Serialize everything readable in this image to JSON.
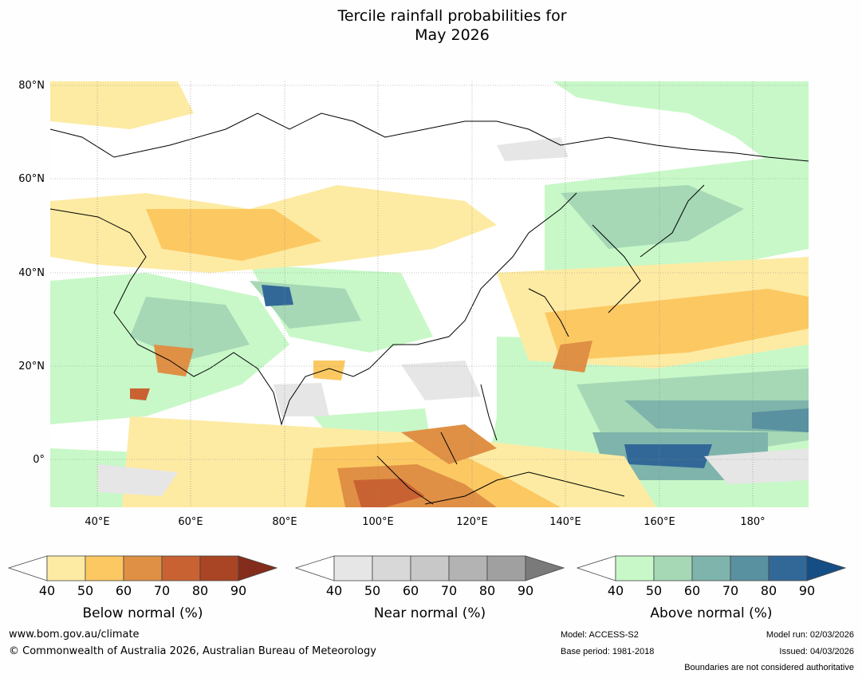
{
  "title_line1": "Tercile rainfall probabilities for",
  "title_line2": "May 2026",
  "lat_labels": [
    "80°N",
    "60°N",
    "40°N",
    "20°N",
    "0°"
  ],
  "lon_labels": [
    "40°E",
    "60°E",
    "80°E",
    "100°E",
    "120°E",
    "140°E",
    "160°E",
    "180°"
  ],
  "colorbars": [
    {
      "label": "Below normal (%)",
      "ticks": [
        "40",
        "50",
        "60",
        "70",
        "80",
        "90"
      ],
      "colors": [
        "#fdeba3",
        "#fcc862",
        "#df9045",
        "#c96232",
        "#a94424",
        "#842c1b"
      ]
    },
    {
      "label": "Near normal (%)",
      "ticks": [
        "40",
        "50",
        "60",
        "70",
        "80",
        "90"
      ],
      "colors": [
        "#e6e6e6",
        "#d8d8d8",
        "#c8c8c8",
        "#b3b3b3",
        "#a0a0a0",
        "#7a7a7a"
      ]
    },
    {
      "label": "Above normal (%)",
      "ticks": [
        "40",
        "50",
        "60",
        "70",
        "80",
        "90"
      ],
      "colors": [
        "#c8f8c8",
        "#a6d8b6",
        "#7eb4ab",
        "#5a91a0",
        "#326898",
        "#154e84"
      ]
    }
  ],
  "footer": {
    "website": "www.bom.gov.au/climate",
    "copyright": "© Commonwealth of Australia 2026, Australian Bureau of Meteorology",
    "model": "Model: ACCESS-S2",
    "base_period": "Base period: 1981-2018",
    "model_run": "Model run: 02/03/2026",
    "issued": "Issued: 04/03/2026",
    "boundaries": "Boundaries are not considered authoritative"
  }
}
